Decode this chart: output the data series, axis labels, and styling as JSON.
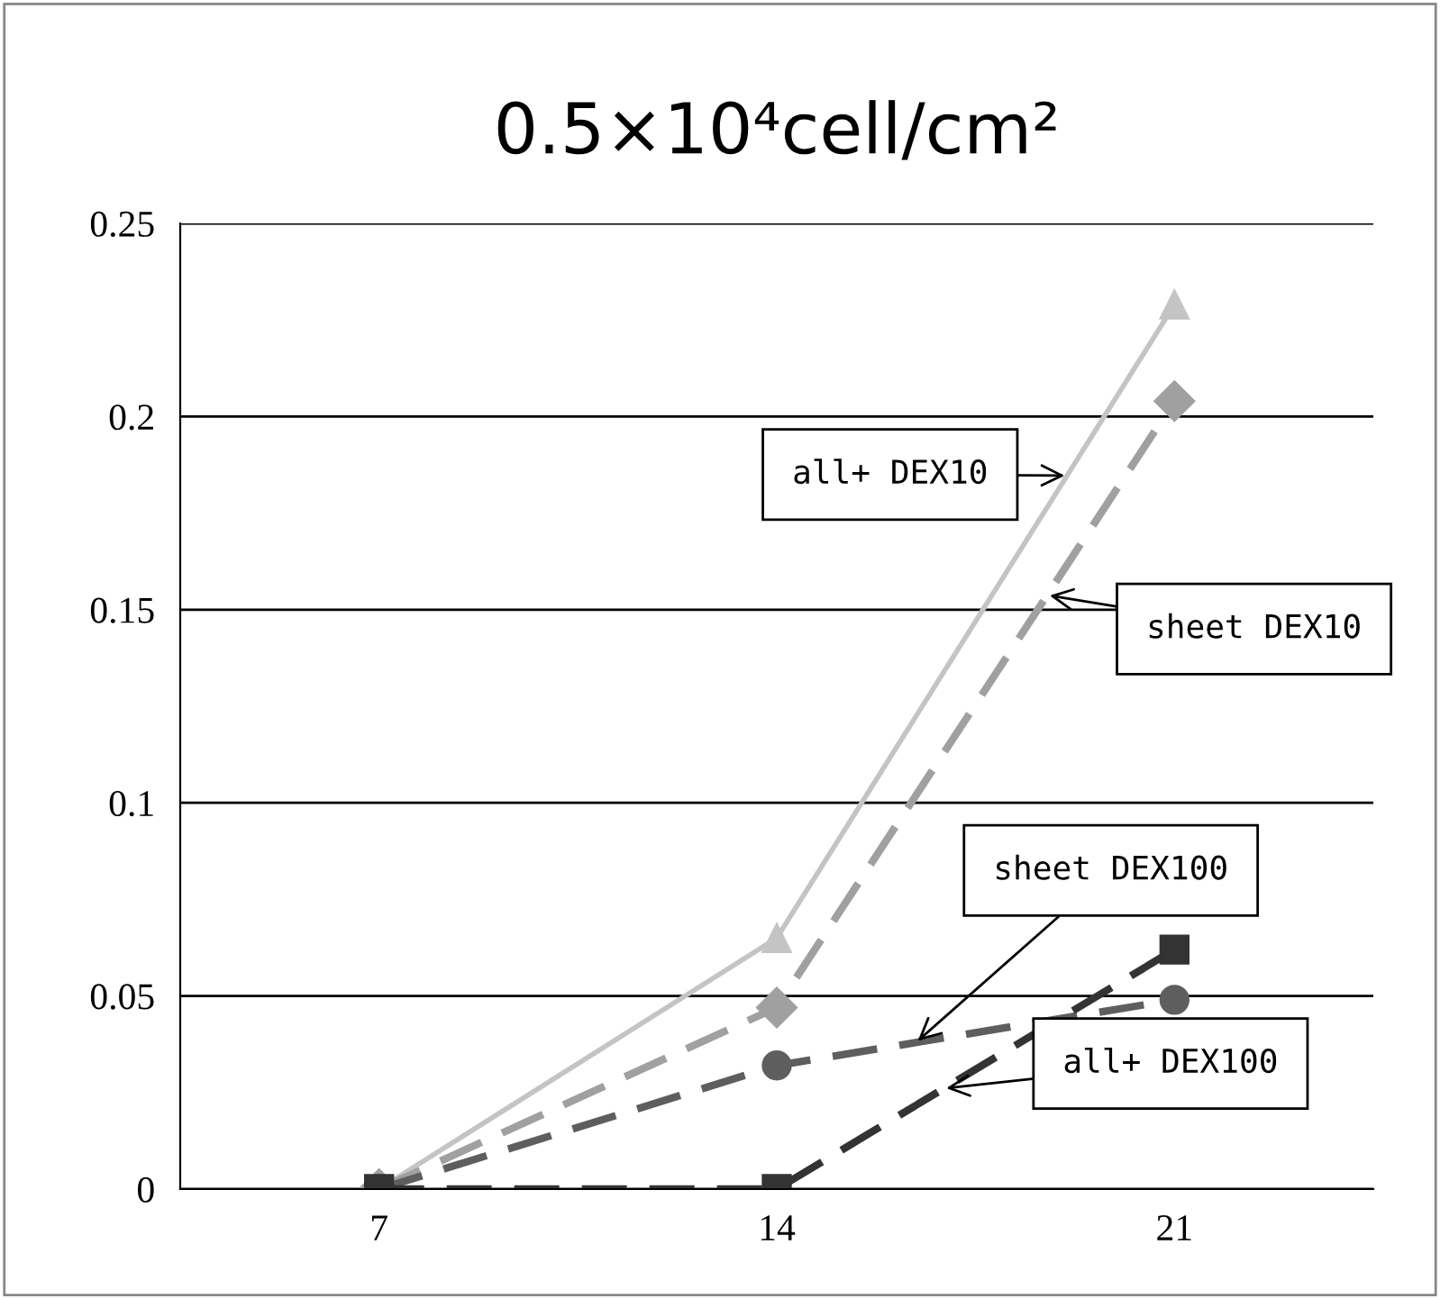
{
  "chart_data": {
    "type": "line",
    "title": "0.5×10⁴cell/cm²",
    "categories": [
      "7",
      "14",
      "21"
    ],
    "series": [
      {
        "name": "all+ DEX10",
        "color": "#c4c4c4",
        "values": [
          0,
          0.065,
          0.229
        ],
        "marker": "triangle",
        "line_style": "solid"
      },
      {
        "name": "sheet DEX10",
        "color": "#a0a0a0",
        "values": [
          0,
          0.047,
          0.204
        ],
        "marker": "diamond",
        "line_style": "dashed"
      },
      {
        "name": "sheet DEX100",
        "color": "#5e5e5e",
        "values": [
          0,
          0.032,
          0.049
        ],
        "marker": "circle",
        "line_style": "dashed"
      },
      {
        "name": "all+ DEX100",
        "color": "#333333",
        "values": [
          0,
          0,
          0.062
        ],
        "marker": "square",
        "line_style": "dashed"
      }
    ],
    "ylim": [
      0,
      0.25
    ],
    "yticks": [
      0,
      0.05,
      0.1,
      0.15,
      0.2,
      0.25
    ],
    "grid": "y",
    "legend": false
  }
}
